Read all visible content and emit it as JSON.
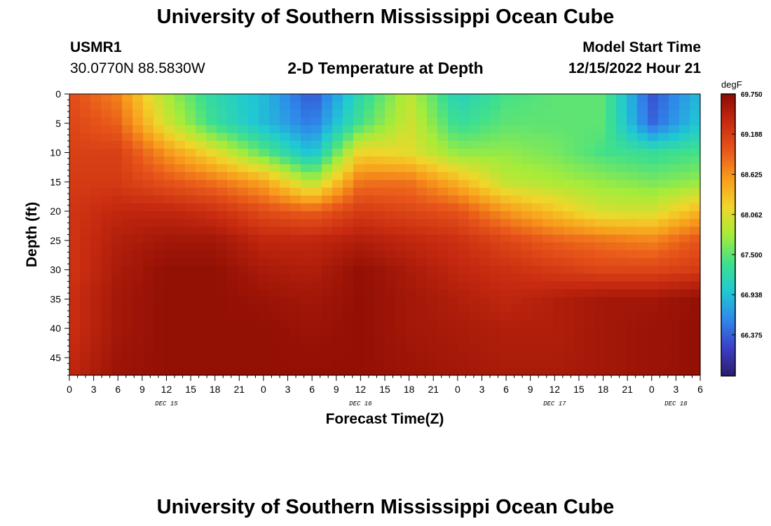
{
  "header": {
    "title": "University of Southern Mississippi Ocean Cube",
    "station_id": "USMR1",
    "station_coords": "30.0770N  88.5830W",
    "plot_title": "2-D Temperature at Depth",
    "model_start_label": "Model Start Time",
    "model_start_value": "12/15/2022 Hour 21"
  },
  "footer": {
    "title": "University of Southern Mississippi Ocean Cube"
  },
  "chart_data": {
    "type": "heatmap",
    "title": "2-D Temperature at Depth",
    "xlabel": "Forecast Time(Z)",
    "ylabel": "Depth (ft)",
    "x_tick_labels": [
      "0",
      "3",
      "6",
      "9",
      "12",
      "15",
      "18",
      "21",
      "0",
      "3",
      "6",
      "9",
      "12",
      "15",
      "18",
      "21",
      "0",
      "3",
      "6",
      "9",
      "12",
      "15",
      "18",
      "21",
      "0",
      "3",
      "6"
    ],
    "x_date_labels": [
      {
        "label": "DEC 15",
        "tick_index": 4
      },
      {
        "label": "DEC 16",
        "tick_index": 12
      },
      {
        "label": "DEC 17",
        "tick_index": 20
      },
      {
        "label": "DEC 18",
        "tick_index": 25
      }
    ],
    "x_range_hours": [
      0,
      78
    ],
    "y_range_ft": [
      0,
      48
    ],
    "y_ticks": [
      0,
      5,
      10,
      15,
      20,
      25,
      30,
      35,
      40,
      45
    ],
    "y_inverted": true,
    "colorbar": {
      "unit": "degF",
      "min": 65.8,
      "max": 69.75,
      "tick_values": [
        69.75,
        69.188,
        68.625,
        68.062,
        67.5,
        66.938,
        66.375
      ],
      "tick_labels": [
        "69.750",
        "69.188",
        "68.625",
        "68.062",
        "67.500",
        "66.938",
        "66.375"
      ],
      "colors": [
        "#2b1d6b",
        "#3c3fc8",
        "#2f88ea",
        "#1fc9d3",
        "#3fe08c",
        "#a6ec3a",
        "#f1d62a",
        "#f89c1c",
        "#e8561a",
        "#c72a10",
        "#8c0c03"
      ]
    },
    "grid_depths_ft": [
      0,
      5,
      10,
      15,
      20,
      25,
      30,
      35,
      40,
      48
    ],
    "grid_hours": [
      0,
      6,
      12,
      18,
      24,
      30,
      36,
      42,
      48,
      54,
      60,
      66,
      72,
      78
    ],
    "temperature_degF": [
      [
        69.05,
        68.7,
        67.8,
        67.2,
        66.9,
        66.3,
        67.2,
        67.9,
        67.1,
        67.4,
        67.5,
        67.5,
        66.3,
        66.9
      ],
      [
        69.1,
        68.9,
        68.0,
        67.3,
        66.9,
        66.5,
        67.4,
        68.0,
        67.3,
        67.5,
        67.5,
        67.5,
        66.4,
        67.0
      ],
      [
        69.15,
        69.15,
        68.6,
        68.1,
        67.5,
        66.9,
        68.2,
        68.1,
        67.7,
        67.7,
        67.6,
        67.4,
        67.3,
        67.4
      ],
      [
        69.2,
        69.2,
        69.0,
        68.8,
        68.5,
        67.8,
        68.8,
        68.8,
        68.4,
        67.9,
        67.8,
        67.7,
        67.6,
        67.7
      ],
      [
        69.25,
        69.4,
        69.4,
        69.3,
        69.05,
        68.9,
        69.2,
        69.1,
        69.0,
        68.6,
        68.3,
        68.0,
        68.0,
        68.4
      ],
      [
        69.25,
        69.5,
        69.6,
        69.6,
        69.4,
        69.4,
        69.5,
        69.4,
        69.3,
        69.1,
        68.9,
        68.8,
        68.7,
        69.0
      ],
      [
        69.25,
        69.55,
        69.7,
        69.7,
        69.55,
        69.5,
        69.7,
        69.55,
        69.4,
        69.3,
        69.2,
        69.1,
        69.1,
        69.2
      ],
      [
        69.3,
        69.6,
        69.7,
        69.7,
        69.65,
        69.6,
        69.7,
        69.6,
        69.5,
        69.4,
        69.5,
        69.6,
        69.6,
        69.7
      ],
      [
        69.3,
        69.6,
        69.7,
        69.7,
        69.7,
        69.65,
        69.7,
        69.6,
        69.55,
        69.5,
        69.5,
        69.6,
        69.65,
        69.7
      ],
      [
        69.4,
        69.65,
        69.7,
        69.7,
        69.7,
        69.7,
        69.7,
        69.65,
        69.6,
        69.55,
        69.55,
        69.6,
        69.65,
        69.7
      ]
    ]
  }
}
